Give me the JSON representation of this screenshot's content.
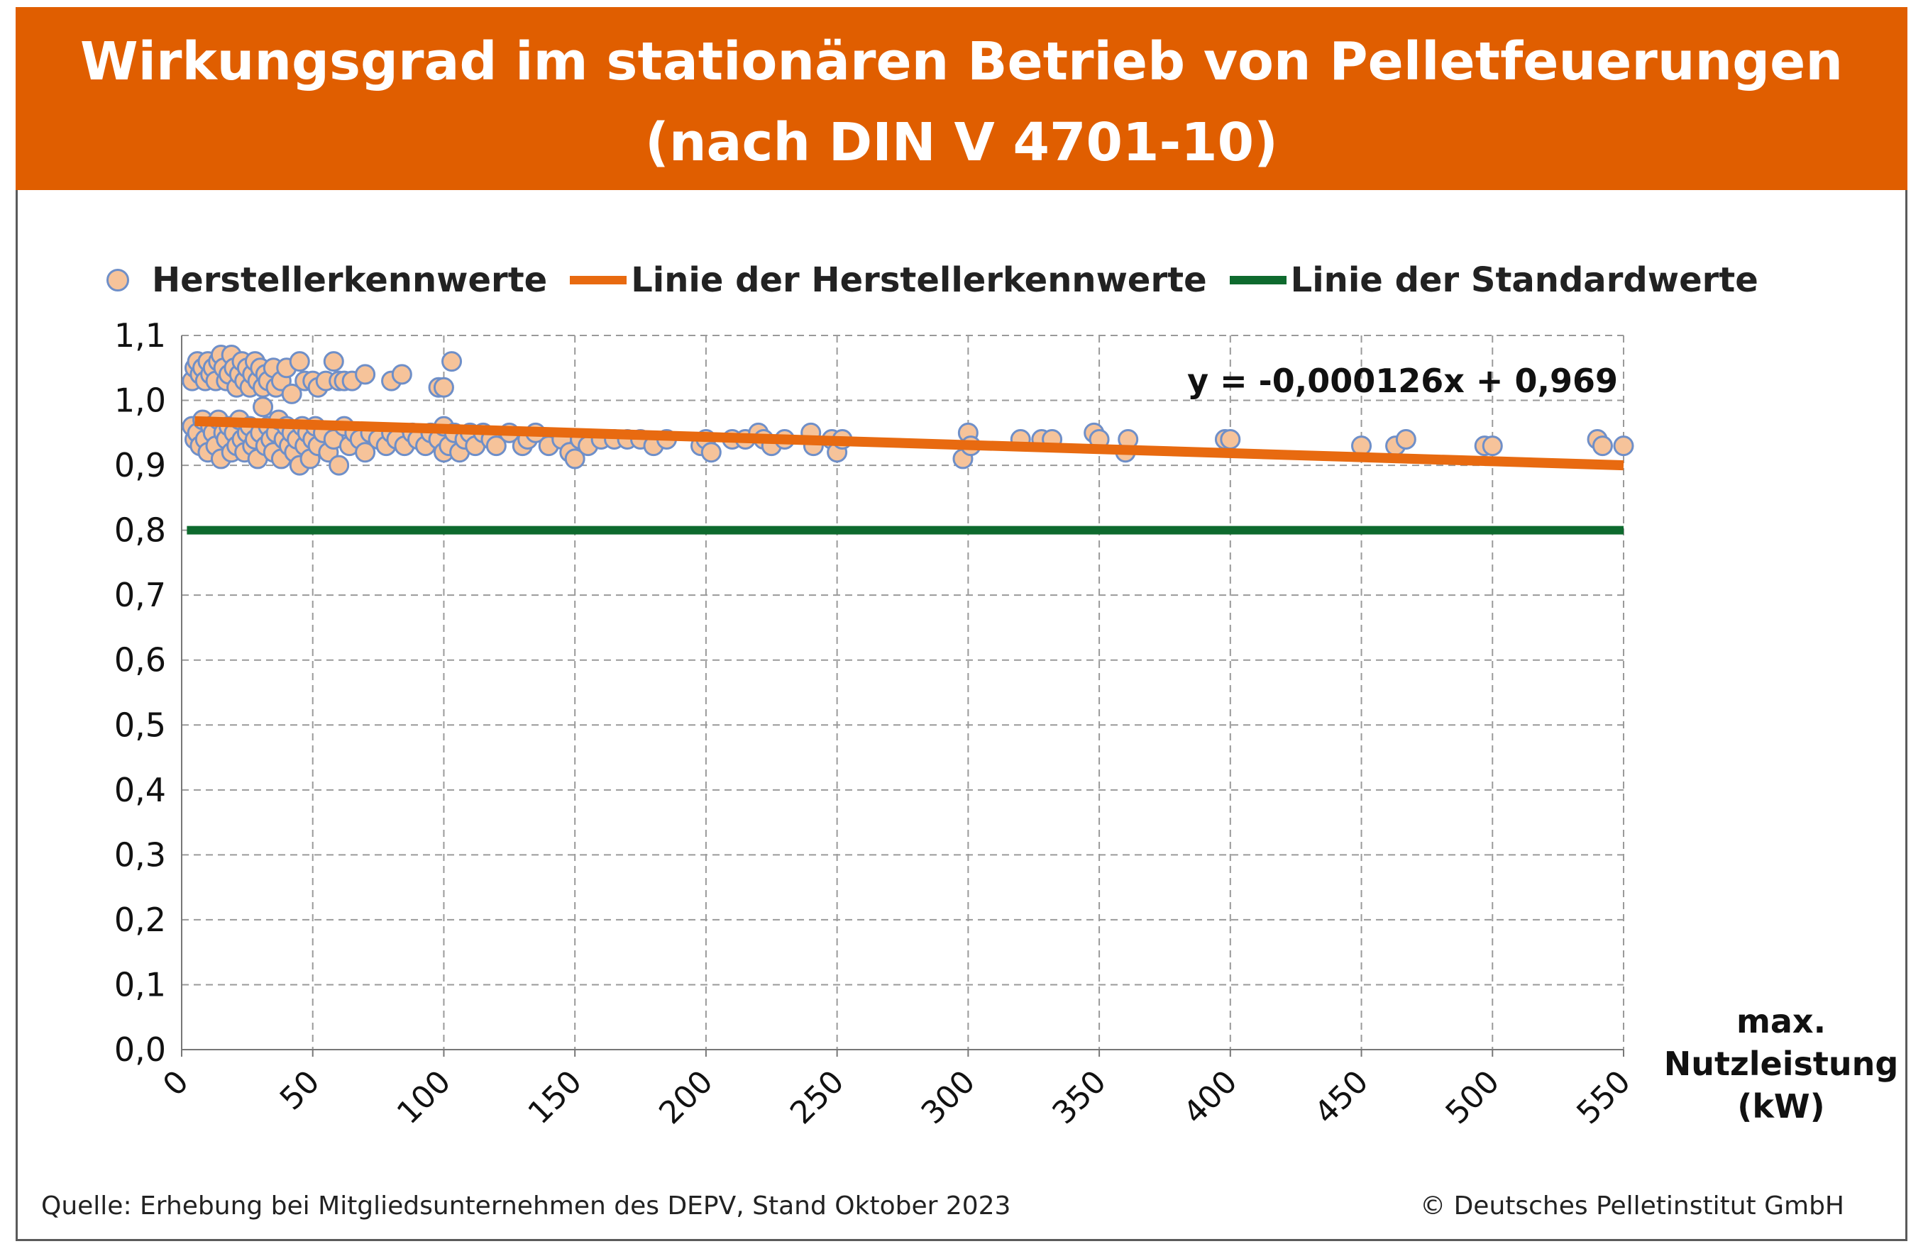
{
  "header": {
    "title_line1": "Wirkungsgrad im stationären Betrieb von Pelletfeuerungen",
    "title_line2": "(nach DIN V 4701-10)"
  },
  "footer": {
    "source": "Quelle: Erhebung bei Mitgliedsunternehmen des DEPV, Stand Oktober 2023",
    "copyright": "© Deutsches Pelletinstitut GmbH"
  },
  "colors": {
    "title_background": "#e05e00",
    "marker_fill": "#f6c39a",
    "marker_stroke": "#6f8fc8",
    "trend_line": "#e86a10",
    "standard_line": "#0e6a2e"
  },
  "chart_data": {
    "type": "scatter",
    "title": "Wirkungsgrad im stationären Betrieb von Pelletfeuerungen (nach DIN V 4701-10)",
    "xlabel_lines": [
      "max.",
      "Nutzleistung",
      "(kW)"
    ],
    "ylabel": "",
    "xlim": [
      0,
      550
    ],
    "ylim": [
      0,
      1.1
    ],
    "x_ticks": [
      "0",
      "50",
      "100",
      "150",
      "200",
      "250",
      "300",
      "350",
      "400",
      "450",
      "500",
      "550"
    ],
    "y_ticks": [
      "0,0",
      "0,1",
      "0,2",
      "0,3",
      "0,4",
      "0,5",
      "0,6",
      "0,7",
      "0,8",
      "0,9",
      "1,0",
      "1,1"
    ],
    "grid": true,
    "legend_position": "top",
    "equation": "y = -0,000126x + 0,969",
    "series": [
      {
        "name": "Herstellerkennwerte",
        "kind": "scatter",
        "points": [
          [
            4,
            1.03
          ],
          [
            5,
            1.05
          ],
          [
            6,
            1.06
          ],
          [
            7,
            1.04
          ],
          [
            8,
            1.05
          ],
          [
            9,
            1.03
          ],
          [
            10,
            1.06
          ],
          [
            11,
            1.04
          ],
          [
            12,
            1.05
          ],
          [
            13,
            1.03
          ],
          [
            14,
            1.06
          ],
          [
            15,
            1.07
          ],
          [
            16,
            1.05
          ],
          [
            17,
            1.03
          ],
          [
            18,
            1.04
          ],
          [
            19,
            1.07
          ],
          [
            20,
            1.05
          ],
          [
            21,
            1.02
          ],
          [
            22,
            1.04
          ],
          [
            23,
            1.06
          ],
          [
            24,
            1.03
          ],
          [
            25,
            1.05
          ],
          [
            26,
            1.02
          ],
          [
            27,
            1.04
          ],
          [
            28,
            1.06
          ],
          [
            29,
            1.03
          ],
          [
            30,
            1.05
          ],
          [
            31,
            1.02
          ],
          [
            32,
            1.04
          ],
          [
            33,
            1.03
          ],
          [
            35,
            1.05
          ],
          [
            36,
            1.02
          ],
          [
            38,
            1.03
          ],
          [
            40,
            1.05
          ],
          [
            42,
            1.01
          ],
          [
            45,
            1.06
          ],
          [
            47,
            1.03
          ],
          [
            50,
            1.03
          ],
          [
            52,
            1.02
          ],
          [
            55,
            1.03
          ],
          [
            58,
            1.06
          ],
          [
            60,
            1.03
          ],
          [
            62,
            1.03
          ],
          [
            65,
            1.03
          ],
          [
            70,
            1.04
          ],
          [
            80,
            1.03
          ],
          [
            84,
            1.04
          ],
          [
            98,
            1.02
          ],
          [
            100,
            1.02
          ],
          [
            103,
            1.06
          ],
          [
            4,
            0.96
          ],
          [
            5,
            0.94
          ],
          [
            6,
            0.95
          ],
          [
            7,
            0.93
          ],
          [
            8,
            0.97
          ],
          [
            9,
            0.94
          ],
          [
            10,
            0.92
          ],
          [
            11,
            0.96
          ],
          [
            12,
            0.95
          ],
          [
            13,
            0.93
          ],
          [
            14,
            0.97
          ],
          [
            15,
            0.91
          ],
          [
            16,
            0.95
          ],
          [
            17,
            0.94
          ],
          [
            18,
            0.96
          ],
          [
            19,
            0.92
          ],
          [
            20,
            0.95
          ],
          [
            21,
            0.93
          ],
          [
            22,
            0.97
          ],
          [
            23,
            0.94
          ],
          [
            24,
            0.92
          ],
          [
            25,
            0.95
          ],
          [
            26,
            0.96
          ],
          [
            27,
            0.93
          ],
          [
            28,
            0.94
          ],
          [
            29,
            0.91
          ],
          [
            30,
            0.95
          ],
          [
            31,
            0.99
          ],
          [
            32,
            0.93
          ],
          [
            33,
            0.96
          ],
          [
            34,
            0.94
          ],
          [
            35,
            0.92
          ],
          [
            36,
            0.95
          ],
          [
            37,
            0.97
          ],
          [
            38,
            0.91
          ],
          [
            39,
            0.94
          ],
          [
            40,
            0.96
          ],
          [
            41,
            0.93
          ],
          [
            42,
            0.95
          ],
          [
            43,
            0.92
          ],
          [
            44,
            0.94
          ],
          [
            45,
            0.9
          ],
          [
            46,
            0.96
          ],
          [
            47,
            0.93
          ],
          [
            48,
            0.95
          ],
          [
            49,
            0.91
          ],
          [
            50,
            0.94
          ],
          [
            51,
            0.96
          ],
          [
            52,
            0.93
          ],
          [
            54,
            0.95
          ],
          [
            56,
            0.92
          ],
          [
            58,
            0.94
          ],
          [
            60,
            0.9
          ],
          [
            62,
            0.96
          ],
          [
            64,
            0.93
          ],
          [
            66,
            0.95
          ],
          [
            68,
            0.94
          ],
          [
            70,
            0.92
          ],
          [
            72,
            0.95
          ],
          [
            75,
            0.94
          ],
          [
            78,
            0.93
          ],
          [
            80,
            0.95
          ],
          [
            82,
            0.94
          ],
          [
            85,
            0.93
          ],
          [
            88,
            0.95
          ],
          [
            90,
            0.94
          ],
          [
            93,
            0.93
          ],
          [
            95,
            0.95
          ],
          [
            98,
            0.94
          ],
          [
            100,
            0.92
          ],
          [
            100,
            0.96
          ],
          [
            102,
            0.93
          ],
          [
            104,
            0.95
          ],
          [
            106,
            0.92
          ],
          [
            108,
            0.94
          ],
          [
            110,
            0.95
          ],
          [
            112,
            0.93
          ],
          [
            115,
            0.95
          ],
          [
            118,
            0.94
          ],
          [
            120,
            0.93
          ],
          [
            125,
            0.95
          ],
          [
            130,
            0.93
          ],
          [
            132,
            0.94
          ],
          [
            135,
            0.95
          ],
          [
            140,
            0.93
          ],
          [
            145,
            0.94
          ],
          [
            148,
            0.92
          ],
          [
            150,
            0.91
          ],
          [
            152,
            0.94
          ],
          [
            155,
            0.93
          ],
          [
            160,
            0.94
          ],
          [
            165,
            0.94
          ],
          [
            170,
            0.94
          ],
          [
            175,
            0.94
          ],
          [
            180,
            0.93
          ],
          [
            185,
            0.94
          ],
          [
            198,
            0.93
          ],
          [
            200,
            0.94
          ],
          [
            202,
            0.92
          ],
          [
            210,
            0.94
          ],
          [
            215,
            0.94
          ],
          [
            220,
            0.95
          ],
          [
            222,
            0.94
          ],
          [
            225,
            0.93
          ],
          [
            230,
            0.94
          ],
          [
            240,
            0.95
          ],
          [
            241,
            0.93
          ],
          [
            248,
            0.94
          ],
          [
            250,
            0.92
          ],
          [
            252,
            0.94
          ],
          [
            298,
            0.91
          ],
          [
            300,
            0.95
          ],
          [
            301,
            0.93
          ],
          [
            320,
            0.94
          ],
          [
            328,
            0.94
          ],
          [
            332,
            0.94
          ],
          [
            348,
            0.95
          ],
          [
            350,
            0.94
          ],
          [
            360,
            0.92
          ],
          [
            361,
            0.94
          ],
          [
            398,
            0.94
          ],
          [
            400,
            0.94
          ],
          [
            450,
            0.93
          ],
          [
            463,
            0.93
          ],
          [
            467,
            0.94
          ],
          [
            497,
            0.93
          ],
          [
            500,
            0.93
          ],
          [
            540,
            0.94
          ],
          [
            542,
            0.93
          ],
          [
            550,
            0.93
          ]
        ]
      },
      {
        "name": "Linie der Herstellerkennwerte",
        "kind": "line",
        "x": [
          5,
          550
        ],
        "y": [
          0.968,
          0.9
        ]
      },
      {
        "name": "Linie der Standardwerte",
        "kind": "line",
        "x": [
          2,
          550
        ],
        "y": [
          0.8,
          0.8
        ]
      }
    ]
  }
}
